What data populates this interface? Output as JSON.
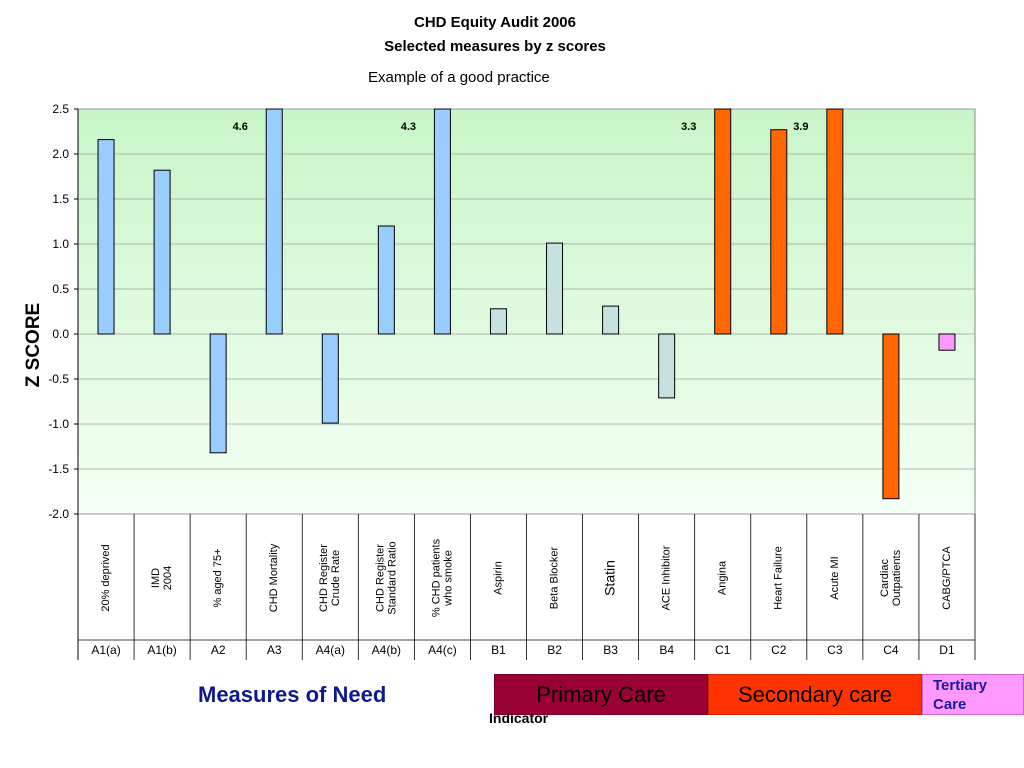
{
  "title": "CHD Equity Audit 2006",
  "subtitle": "Selected measures by z scores",
  "note": "Example of a good practice",
  "ylabel": "Z SCORE",
  "xlabel": "Indicator",
  "sections": {
    "need": "Measures of Need",
    "primary": "Primary Care",
    "secondary": "Secondary care",
    "tertiary": "Tertiary Care"
  },
  "colors": {
    "need_bar": "#99ccff",
    "primary_bar": "#c5e1e1",
    "secondary_bar": "#ff6600",
    "tertiary_bar": "#ff99ff",
    "plot_top": "#c8f5c8",
    "plot_bottom": "#f4fff4",
    "primary_box": "#990033",
    "secondary_box": "#ff3300",
    "tertiary_box": "#ff99ff"
  },
  "chart_data": {
    "type": "bar",
    "ylim": [
      -2.0,
      2.5
    ],
    "yticks": [
      "2.5",
      "2.0",
      "1.5",
      "1.0",
      "0.5",
      "0.0",
      "-0.5",
      "-1.0",
      "-1.5",
      "-2.0"
    ],
    "grid": true,
    "categories": [
      {
        "code": "A1(a)",
        "name": [
          "20% deprived"
        ],
        "value": 2.16,
        "group": "need"
      },
      {
        "code": "A1(b)",
        "name": [
          "IMD",
          "2004"
        ],
        "value": 1.82,
        "group": "need"
      },
      {
        "code": "A2",
        "name": [
          "% aged 75+"
        ],
        "value": -1.32,
        "group": "need"
      },
      {
        "code": "A3",
        "name": [
          "CHD Mortality"
        ],
        "value": 4.6,
        "label": "4.6",
        "group": "need"
      },
      {
        "code": "A4(a)",
        "name": [
          "CHD Register",
          "Crude Rate"
        ],
        "value": -0.99,
        "group": "need"
      },
      {
        "code": "A4(b)",
        "name": [
          "CHD Register",
          "Standard Ratio"
        ],
        "value": 1.2,
        "group": "need"
      },
      {
        "code": "A4(c)",
        "name": [
          "% CHD patients",
          "who smoke"
        ],
        "value": 4.3,
        "label": "4.3",
        "group": "need"
      },
      {
        "code": "B1",
        "name": [
          "Aspirin"
        ],
        "value": 0.28,
        "group": "primary"
      },
      {
        "code": "B2",
        "name": [
          "Beta Blocker"
        ],
        "value": 1.01,
        "group": "primary"
      },
      {
        "code": "B3",
        "name": [
          "Statin"
        ],
        "value": 0.31,
        "group": "primary"
      },
      {
        "code": "B4",
        "name": [
          "ACE Inhibitor"
        ],
        "value": -0.71,
        "group": "primary"
      },
      {
        "code": "C1",
        "name": [
          "Angina"
        ],
        "value": 3.3,
        "label": "3.3",
        "group": "secondary"
      },
      {
        "code": "C2",
        "name": [
          "Heart Failure"
        ],
        "value": 2.27,
        "group": "secondary"
      },
      {
        "code": "C3",
        "name": [
          "Acute MI"
        ],
        "value": 3.9,
        "label": "3.9",
        "group": "secondary"
      },
      {
        "code": "C4",
        "name": [
          "Cardiac",
          "Outpatients"
        ],
        "value": -1.83,
        "group": "secondary"
      },
      {
        "code": "D1",
        "name": [
          "CABG/PTCA"
        ],
        "value": -0.18,
        "group": "tertiary"
      }
    ]
  }
}
